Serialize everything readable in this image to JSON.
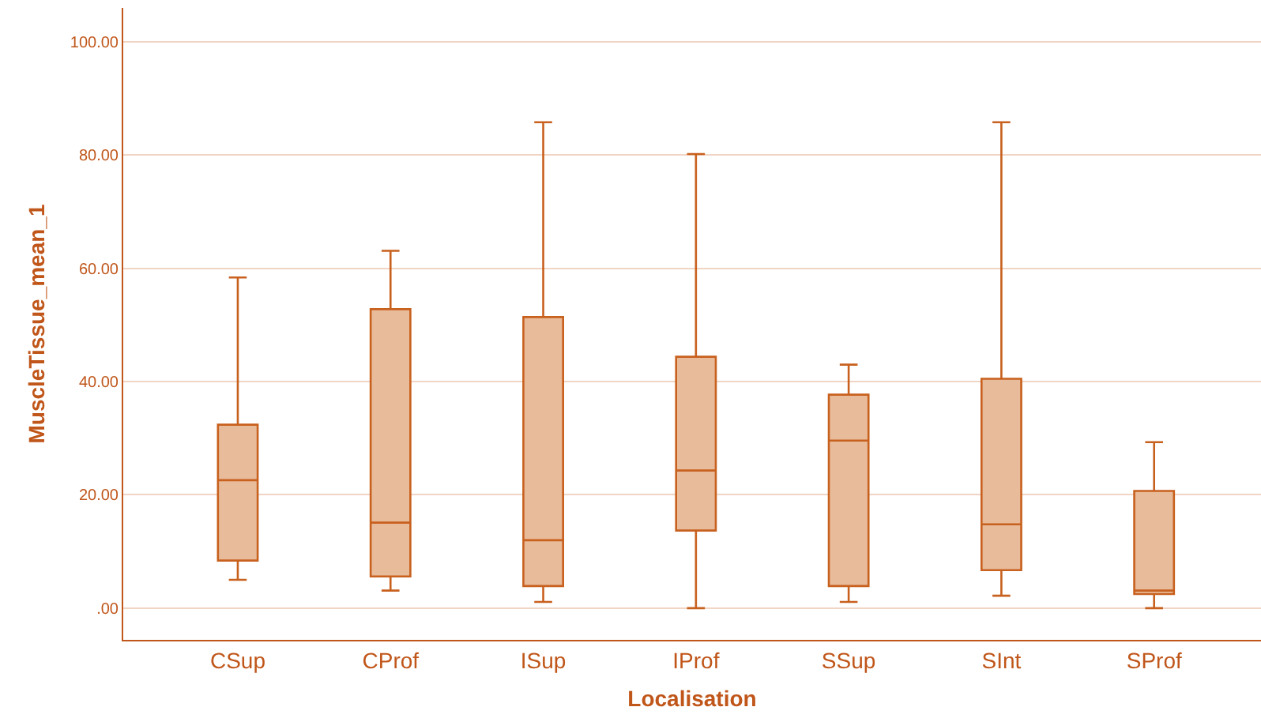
{
  "chart_data": {
    "type": "box",
    "xlabel": "Localisation",
    "ylabel": "MuscleTissue_mean_1",
    "categories": [
      "CSup",
      "CProf",
      "ISup",
      "IProf",
      "SSup",
      "SInt",
      "SProf"
    ],
    "boxes": [
      {
        "low": 5.0,
        "q1": 8.4,
        "median": 22.6,
        "q3": 32.4,
        "high": 58.4
      },
      {
        "low": 3.1,
        "q1": 5.6,
        "median": 15.1,
        "q3": 52.8,
        "high": 63.1
      },
      {
        "low": 1.1,
        "q1": 3.9,
        "median": 12.0,
        "q3": 51.4,
        "high": 85.8
      },
      {
        "low": 0,
        "q1": 13.7,
        "median": 24.3,
        "q3": 44.4,
        "high": 80.2
      },
      {
        "low": 1.1,
        "q1": 3.9,
        "median": 29.6,
        "q3": 37.7,
        "high": 43.0
      },
      {
        "low": 2.2,
        "q1": 6.7,
        "median": 14.8,
        "q3": 40.5,
        "high": 85.8
      },
      {
        "low": 0,
        "q1": 2.5,
        "median": 3.1,
        "q3": 20.7,
        "high": 29.3
      }
    ],
    "color": "#c8601e",
    "colors": [
      "#e8bb9a",
      "#e8bb9a",
      "#e8bb9a",
      "#e8bb9a",
      "#e8bb9a",
      "#e8bb9a",
      "#e8bb9a"
    ],
    "ylim": [
      -5.6,
      106
    ],
    "yticks": [
      {
        "value": 0,
        "label": ".00"
      },
      {
        "value": 20,
        "label": "20.00"
      },
      {
        "value": 40,
        "label": "40.00"
      },
      {
        "value": 60,
        "label": "60.00"
      },
      {
        "value": 80,
        "label": "80.00"
      },
      {
        "value": 100,
        "label": "100.00"
      }
    ],
    "grid": "y"
  }
}
